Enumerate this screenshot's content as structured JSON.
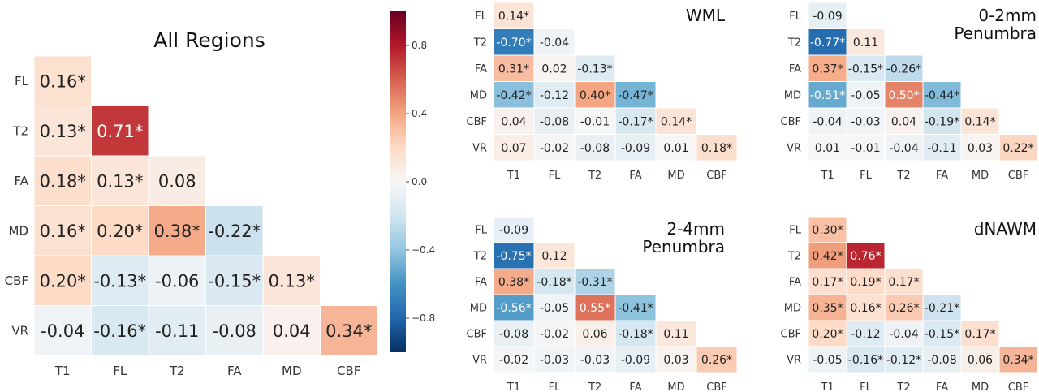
{
  "chart_data": [
    {
      "type": "heatmap",
      "title": "All Regions",
      "subtitle": "",
      "rows": [
        "FL",
        "T2",
        "FA",
        "MD",
        "CBF",
        "VR"
      ],
      "cols": [
        "T1",
        "FL",
        "T2",
        "FA",
        "MD",
        "CBF"
      ],
      "values": [
        [
          0.16
        ],
        [
          0.13,
          0.71
        ],
        [
          0.18,
          0.13,
          0.08
        ],
        [
          0.16,
          0.2,
          0.38,
          -0.22
        ],
        [
          0.2,
          -0.13,
          -0.06,
          -0.15,
          0.13
        ],
        [
          -0.04,
          -0.16,
          -0.11,
          -0.08,
          0.04,
          0.34
        ]
      ],
      "labels": [
        [
          "0.16*"
        ],
        [
          "0.13*",
          "0.71*"
        ],
        [
          "0.18*",
          "0.13*",
          "0.08"
        ],
        [
          "0.16*",
          "0.20*",
          "0.38*",
          "-0.22*"
        ],
        [
          "0.20*",
          "-0.13*",
          "-0.06",
          "-0.15*",
          "0.13*"
        ],
        [
          "-0.04",
          "-0.16*",
          "-0.11",
          "-0.08",
          "0.04",
          "0.34*"
        ]
      ]
    },
    {
      "type": "heatmap",
      "title": "WML",
      "subtitle": "",
      "rows": [
        "FL",
        "T2",
        "FA",
        "MD",
        "CBF",
        "VR"
      ],
      "cols": [
        "T1",
        "FL",
        "T2",
        "FA",
        "MD",
        "CBF"
      ],
      "values": [
        [
          0.14
        ],
        [
          -0.7,
          -0.04
        ],
        [
          0.31,
          0.02,
          -0.13
        ],
        [
          -0.42,
          -0.12,
          0.4,
          -0.47
        ],
        [
          0.04,
          -0.08,
          -0.01,
          -0.17,
          0.14
        ],
        [
          0.07,
          -0.02,
          -0.08,
          -0.09,
          0.01,
          0.18
        ]
      ],
      "labels": [
        [
          "0.14*"
        ],
        [
          "-0.70*",
          "-0.04"
        ],
        [
          "0.31*",
          "0.02",
          "-0.13*"
        ],
        [
          "-0.42*",
          "-0.12",
          "0.40*",
          "-0.47*"
        ],
        [
          "0.04",
          "-0.08",
          "-0.01",
          "-0.17*",
          "0.14*"
        ],
        [
          "0.07",
          "-0.02",
          "-0.08",
          "-0.09",
          "0.01",
          "0.18*"
        ]
      ]
    },
    {
      "type": "heatmap",
      "title": "0-2mm",
      "subtitle": "Penumbra",
      "rows": [
        "FL",
        "T2",
        "FA",
        "MD",
        "CBF",
        "VR"
      ],
      "cols": [
        "T1",
        "FL",
        "T2",
        "FA",
        "MD",
        "CBF"
      ],
      "values": [
        [
          -0.09
        ],
        [
          -0.77,
          0.11
        ],
        [
          0.37,
          -0.15,
          -0.26
        ],
        [
          -0.51,
          -0.05,
          0.5,
          -0.44
        ],
        [
          -0.04,
          -0.03,
          0.04,
          -0.19,
          0.14
        ],
        [
          0.01,
          -0.01,
          -0.04,
          -0.11,
          0.03,
          0.22
        ]
      ],
      "labels": [
        [
          "-0.09"
        ],
        [
          "-0.77*",
          "0.11"
        ],
        [
          "0.37*",
          "-0.15*",
          "-0.26*"
        ],
        [
          "-0.51*",
          "-0.05",
          "0.50*",
          "-0.44*"
        ],
        [
          "-0.04",
          "-0.03",
          "0.04",
          "-0.19*",
          "0.14*"
        ],
        [
          "0.01",
          "-0.01",
          "-0.04",
          "-0.11",
          "0.03",
          "0.22*"
        ]
      ]
    },
    {
      "type": "heatmap",
      "title": "2-4mm",
      "subtitle": "Penumbra",
      "rows": [
        "FL",
        "T2",
        "FA",
        "MD",
        "CBF",
        "VR"
      ],
      "cols": [
        "T1",
        "FL",
        "T2",
        "FA",
        "MD",
        "CBF"
      ],
      "values": [
        [
          -0.09
        ],
        [
          -0.75,
          0.12
        ],
        [
          0.38,
          -0.18,
          -0.31
        ],
        [
          -0.56,
          -0.05,
          0.55,
          -0.41
        ],
        [
          -0.08,
          -0.02,
          0.06,
          -0.18,
          0.11
        ],
        [
          -0.02,
          -0.03,
          -0.03,
          -0.09,
          0.03,
          0.26
        ]
      ],
      "labels": [
        [
          "-0.09"
        ],
        [
          "-0.75*",
          "0.12"
        ],
        [
          "0.38*",
          "-0.18*",
          "-0.31*"
        ],
        [
          "-0.56*",
          "-0.05",
          "0.55*",
          "-0.41*"
        ],
        [
          "-0.08",
          "-0.02",
          "0.06",
          "-0.18*",
          "0.11"
        ],
        [
          "-0.02",
          "-0.03",
          "-0.03",
          "-0.09",
          "0.03",
          "0.26*"
        ]
      ]
    },
    {
      "type": "heatmap",
      "title": "dNAWM",
      "subtitle": "",
      "rows": [
        "FL",
        "T2",
        "FA",
        "MD",
        "CBF",
        "VR"
      ],
      "cols": [
        "T1",
        "FL",
        "T2",
        "FA",
        "MD",
        "CBF"
      ],
      "values": [
        [
          0.3
        ],
        [
          0.42,
          0.76
        ],
        [
          0.17,
          0.19,
          0.17
        ],
        [
          0.35,
          0.16,
          0.26,
          -0.21
        ],
        [
          0.2,
          -0.12,
          -0.04,
          -0.15,
          0.17
        ],
        [
          -0.05,
          -0.16,
          -0.12,
          -0.08,
          0.06,
          0.34
        ]
      ],
      "labels": [
        [
          "0.30*"
        ],
        [
          "0.42*",
          "0.76*"
        ],
        [
          "0.17*",
          "0.19*",
          "0.17*"
        ],
        [
          "0.35*",
          "0.16*",
          "0.26*",
          "-0.21*"
        ],
        [
          "0.20*",
          "-0.12",
          "-0.04",
          "-0.15*",
          "0.17*"
        ],
        [
          "-0.05",
          "-0.16*",
          "-0.12*",
          "-0.08",
          "0.06",
          "0.34*"
        ]
      ]
    }
  ],
  "colorbar": {
    "range": [
      -1,
      1
    ],
    "ticks": [
      0.8,
      0.4,
      0.0,
      -0.4,
      -0.8
    ],
    "tick_labels": [
      "0.8",
      "0.4",
      "0.0",
      "−0.4",
      "−0.8"
    ],
    "colors": [
      "#053061",
      "#2166ac",
      "#4393c3",
      "#92c5de",
      "#d1e5f0",
      "#f7f7f7",
      "#fddbc7",
      "#f4a582",
      "#d6604d",
      "#b2182b",
      "#67001f"
    ]
  }
}
